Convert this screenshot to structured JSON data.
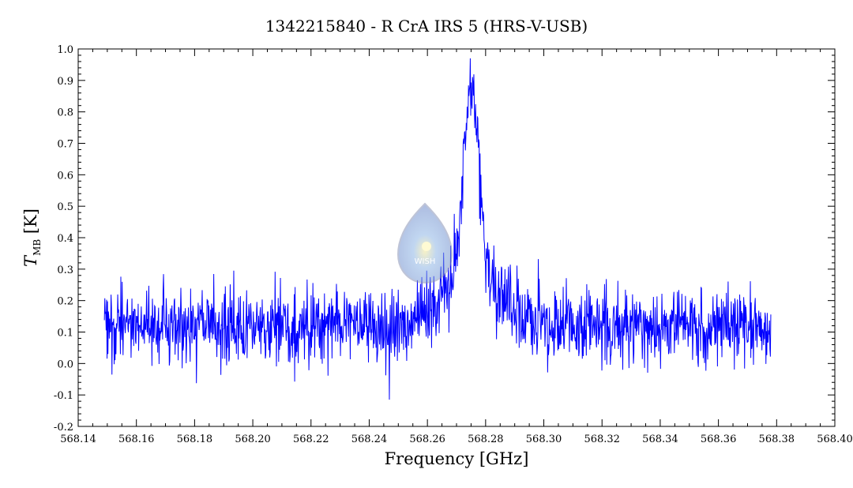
{
  "chart_data": {
    "type": "line",
    "title": "1342215840 - R CrA IRS 5 (HRS-V-USB)",
    "xlabel": "Frequency [GHz]",
    "ylabel_symbol": "T",
    "ylabel_sub": "MB",
    "ylabel_unit": "[K]",
    "xlim": [
      568.14,
      568.4
    ],
    "ylim": [
      -0.2,
      1.0
    ],
    "xticks": [
      "568.14",
      "568.16",
      "568.18",
      "568.20",
      "568.22",
      "568.24",
      "568.26",
      "568.28",
      "568.30",
      "568.32",
      "568.34",
      "568.36",
      "568.38",
      "568.40"
    ],
    "yticks": [
      "-0.2",
      "-0.1",
      "0.0",
      "0.1",
      "0.2",
      "0.3",
      "0.4",
      "0.5",
      "0.6",
      "0.7",
      "0.8",
      "0.9",
      "1.0"
    ],
    "grid": false,
    "series": [
      {
        "color": "#0000ff",
        "x_range": [
          568.149,
          568.378
        ],
        "n_points": 1500,
        "baseline": 0.12,
        "noise_amplitude": 0.06,
        "peak_center": 568.275,
        "peak_height": 0.62,
        "peak_fwhm": 0.006,
        "wing_height": 0.17,
        "wing_fwhm": 0.022,
        "peak_max_value": 0.87,
        "min_value": -0.115
      }
    ]
  }
}
